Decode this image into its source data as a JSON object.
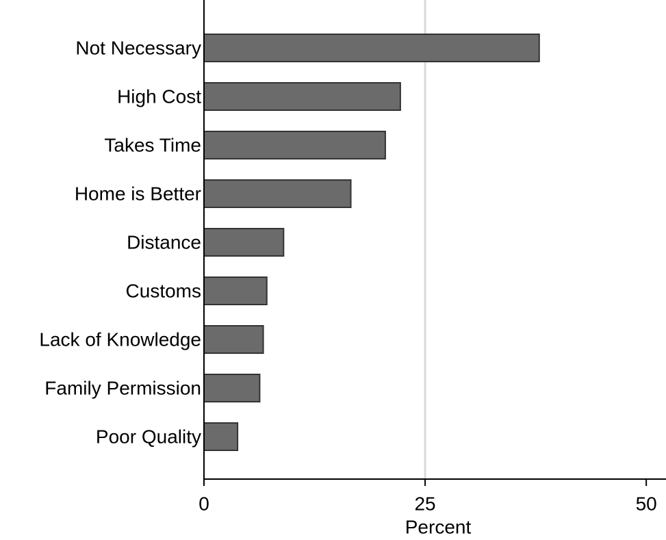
{
  "chart_data": {
    "type": "bar",
    "orientation": "horizontal",
    "categories": [
      "Not Necessary",
      "High Cost",
      "Takes Time",
      "Home is Better",
      "Distance",
      "Customs",
      "Lack of Knowledge",
      "Family Permission",
      "Poor Quality"
    ],
    "values": [
      37.9,
      22.2,
      20.5,
      16.6,
      9.0,
      7.1,
      6.7,
      6.3,
      3.8
    ],
    "color": "#6b6b6b",
    "xlabel": "Percent",
    "xlim": [
      0,
      52
    ],
    "xticks": [
      0,
      25,
      50
    ],
    "grid": true
  }
}
